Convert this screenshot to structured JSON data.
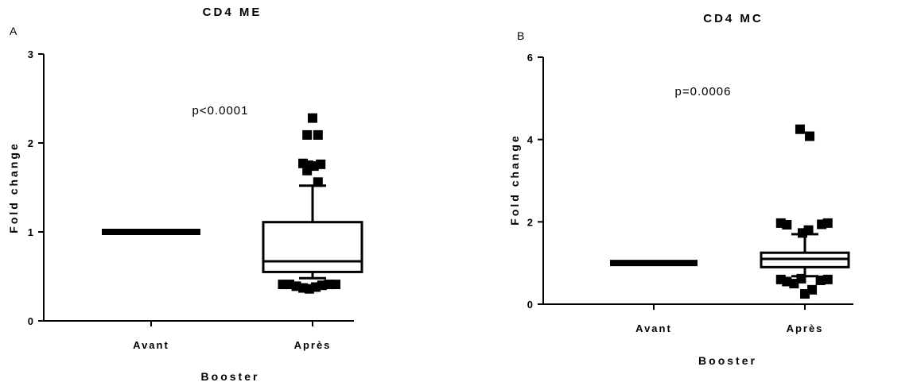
{
  "panels": [
    {
      "letter": "A"
    },
    {
      "letter": "B"
    }
  ],
  "chart_data": [
    {
      "type": "box",
      "title": "CD4 ME",
      "xlabel": "Booster",
      "ylabel": "Fold change",
      "ylim": [
        0,
        3
      ],
      "yticks": [
        0,
        1,
        2,
        3
      ],
      "categories": [
        "Avant",
        "Après"
      ],
      "annotation": "p<0.0001",
      "series": [
        {
          "category": "Avant",
          "whisker_low": 1.0,
          "q1": 1.0,
          "median": 1.0,
          "q3": 1.0,
          "whisker_high": 1.0,
          "outliers": []
        },
        {
          "category": "Après",
          "whisker_low": 0.48,
          "q1": 0.55,
          "median": 0.67,
          "q3": 1.11,
          "whisker_high": 1.52,
          "outliers": [
            {
              "x": 0.0,
              "y": 2.28
            },
            {
              "x": -0.2,
              "y": 2.09
            },
            {
              "x": 0.2,
              "y": 2.09
            },
            {
              "x": -0.35,
              "y": 1.77
            },
            {
              "x": -0.15,
              "y": 1.75
            },
            {
              "x": 0.05,
              "y": 1.74
            },
            {
              "x": 0.3,
              "y": 1.76
            },
            {
              "x": -0.2,
              "y": 1.69
            },
            {
              "x": 0.2,
              "y": 1.56
            },
            {
              "x": -1.1,
              "y": 0.41
            },
            {
              "x": -0.85,
              "y": 0.41
            },
            {
              "x": -0.6,
              "y": 0.39
            },
            {
              "x": -0.35,
              "y": 0.37
            },
            {
              "x": -0.12,
              "y": 0.36
            },
            {
              "x": 0.12,
              "y": 0.38
            },
            {
              "x": 0.35,
              "y": 0.4
            },
            {
              "x": 0.6,
              "y": 0.41
            },
            {
              "x": 0.85,
              "y": 0.41
            }
          ]
        }
      ]
    },
    {
      "type": "box",
      "title": "CD4 MC",
      "xlabel": "Booster",
      "ylabel": "Fold change",
      "ylim": [
        0,
        6
      ],
      "yticks": [
        0,
        2,
        4,
        6
      ],
      "categories": [
        "Avant",
        "Après"
      ],
      "annotation": "p=0.0006",
      "series": [
        {
          "category": "Avant",
          "whisker_low": 1.0,
          "q1": 1.0,
          "median": 1.0,
          "q3": 1.0,
          "whisker_high": 1.0,
          "outliers": []
        },
        {
          "category": "Après",
          "whisker_low": 0.68,
          "q1": 0.9,
          "median": 1.1,
          "q3": 1.25,
          "whisker_high": 1.7,
          "outliers": [
            {
              "x": -0.2,
              "y": 4.25
            },
            {
              "x": 0.2,
              "y": 4.08
            },
            {
              "x": -1.0,
              "y": 1.97
            },
            {
              "x": -0.75,
              "y": 1.93
            },
            {
              "x": 0.7,
              "y": 1.94
            },
            {
              "x": 0.95,
              "y": 1.97
            },
            {
              "x": -0.1,
              "y": 1.73
            },
            {
              "x": 0.15,
              "y": 1.8
            },
            {
              "x": -1.0,
              "y": 0.6
            },
            {
              "x": -0.75,
              "y": 0.55
            },
            {
              "x": -0.45,
              "y": 0.5
            },
            {
              "x": -0.15,
              "y": 0.62
            },
            {
              "x": 0.65,
              "y": 0.58
            },
            {
              "x": 0.95,
              "y": 0.6
            },
            {
              "x": 0.0,
              "y": 0.25
            },
            {
              "x": 0.3,
              "y": 0.35
            }
          ]
        }
      ]
    }
  ]
}
